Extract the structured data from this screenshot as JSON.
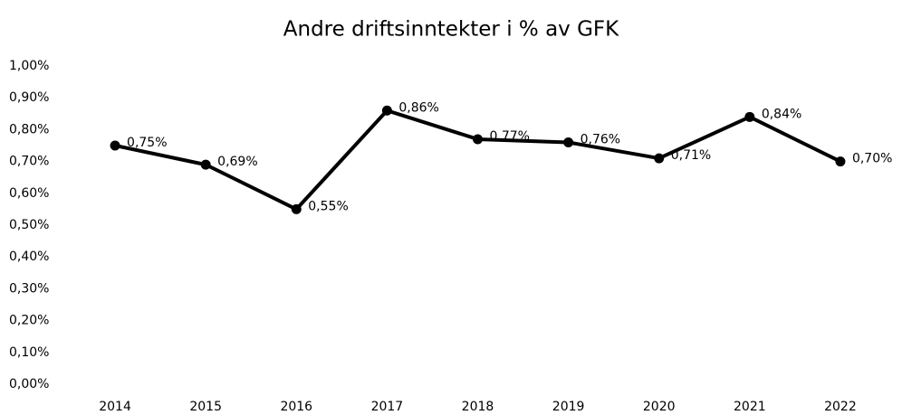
{
  "chart_data": {
    "type": "line",
    "title": "Andre driftsinntekter i % av GFK",
    "categories": [
      "2014",
      "2015",
      "2016",
      "2017",
      "2018",
      "2019",
      "2020",
      "2021",
      "2022"
    ],
    "values": [
      0.75,
      0.69,
      0.55,
      0.86,
      0.77,
      0.76,
      0.71,
      0.84,
      0.7
    ],
    "value_labels": [
      "0,75%",
      "0,69%",
      "0,55%",
      "0,86%",
      "0,77%",
      "0,76%",
      "0,71%",
      "0,84%",
      "0,70%"
    ],
    "color": "#000000",
    "ylim": [
      0,
      1
    ],
    "yticks": [
      {
        "value": 0,
        "label": "0,00%"
      },
      {
        "value": 0.1,
        "label": "0,10%"
      },
      {
        "value": 0.2,
        "label": "0,20%"
      },
      {
        "value": 0.3,
        "label": "0,30%"
      },
      {
        "value": 0.4,
        "label": "0,40%"
      },
      {
        "value": 0.5,
        "label": "0,50%"
      },
      {
        "value": 0.6,
        "label": "0,60%"
      },
      {
        "value": 0.7,
        "label": "0,70%"
      },
      {
        "value": 0.8,
        "label": "0,80%"
      },
      {
        "value": 0.9,
        "label": "0,90%"
      },
      {
        "value": 1,
        "label": "1,00%"
      }
    ],
    "grid": false
  }
}
